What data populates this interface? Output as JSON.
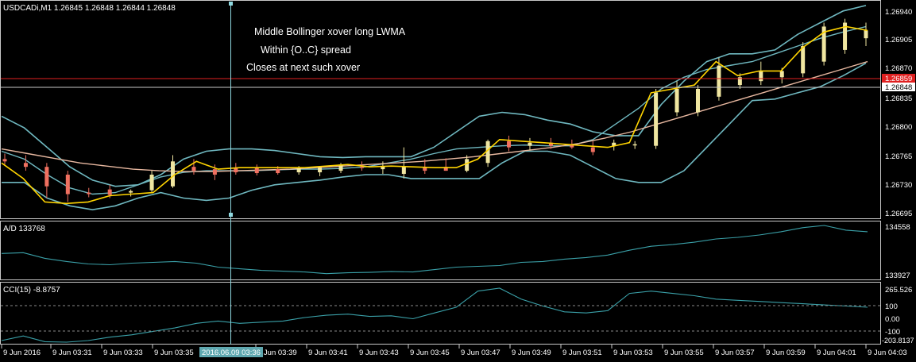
{
  "main_panel": {
    "title": "USDCADi,M1  1.26845 1.26848 1.26844 1.26848",
    "annotations": [
      "Middle Bollinger xover long LWMA",
      "Within {O..C} spread",
      "Closes at next such  xover"
    ],
    "price_labels": [
      "1.26940",
      "1.26905",
      "1.26870",
      "1.26835",
      "1.26800",
      "1.26765",
      "1.26730",
      "1.26695"
    ],
    "bid_price_label": "1.26859",
    "current_price_label": "1.26848"
  },
  "ad_panel": {
    "title": "A/D 133768",
    "scale_labels": [
      "134558",
      "133927"
    ]
  },
  "cci_panel": {
    "title": "CCI(15) -8.8757",
    "scale_labels": [
      "265.526",
      "100",
      "0.00",
      "-100",
      "-203.8137"
    ]
  },
  "time_axis": {
    "labels": [
      "9 Jun 2016",
      "9 Jun 03:31",
      "9 Jun 03:33",
      "9 Jun 03:35",
      "9 Jun 03:39",
      "9 Jun 03:41",
      "9 Jun 03:43",
      "9 Jun 03:45",
      "9 Jun 03:47",
      "9 Jun 03:49",
      "9 Jun 03:51",
      "9 Jun 03:53",
      "9 Jun 03:55",
      "9 Jun 03:57",
      "9 Jun 03:59",
      "9 Jun 04:01",
      "9 Jun 04:03"
    ],
    "crosshair_time": "2016.06.09 03:36"
  },
  "colors": {
    "background": "#000000",
    "bull_candle": "#f0e6a0",
    "bear_candle": "#f07060",
    "bollinger": "#6fb8c0",
    "lwma": "#e8b8a0",
    "fast_line": "#ffd400",
    "bid_line": "#e02020",
    "indicator_line": "#3aa0a8",
    "crosshair": "#8fd8e0"
  },
  "chart_data": {
    "type": "candlestick",
    "symbol": "USDCADi",
    "timeframe": "M1",
    "ylim": [
      1.2668,
      1.26955
    ],
    "candles": [
      {
        "o": 1.26755,
        "h": 1.26762,
        "l": 1.26748,
        "c": 1.26752
      },
      {
        "o": 1.2675,
        "h": 1.2676,
        "l": 1.2674,
        "c": 1.26745
      },
      {
        "o": 1.26745,
        "h": 1.2675,
        "l": 1.26705,
        "c": 1.2672
      },
      {
        "o": 1.26735,
        "h": 1.2674,
        "l": 1.267,
        "c": 1.2671
      },
      {
        "o": 1.26712,
        "h": 1.26718,
        "l": 1.26706,
        "c": 1.2671
      },
      {
        "o": 1.26716,
        "h": 1.26722,
        "l": 1.26705,
        "c": 1.26709
      },
      {
        "o": 1.26712,
        "h": 1.26716,
        "l": 1.26707,
        "c": 1.26714
      },
      {
        "o": 1.26715,
        "h": 1.2674,
        "l": 1.26712,
        "c": 1.26735
      },
      {
        "o": 1.2672,
        "h": 1.2676,
        "l": 1.26718,
        "c": 1.26752
      },
      {
        "o": 1.26745,
        "h": 1.26755,
        "l": 1.26735,
        "c": 1.2674
      },
      {
        "o": 1.26742,
        "h": 1.26748,
        "l": 1.26728,
        "c": 1.26735
      },
      {
        "o": 1.26744,
        "h": 1.2675,
        "l": 1.26735,
        "c": 1.26738
      },
      {
        "o": 1.26744,
        "h": 1.26748,
        "l": 1.26734,
        "c": 1.26737
      },
      {
        "o": 1.26742,
        "h": 1.26746,
        "l": 1.26735,
        "c": 1.26737
      },
      {
        "o": 1.26738,
        "h": 1.26746,
        "l": 1.26735,
        "c": 1.26744
      },
      {
        "o": 1.26738,
        "h": 1.26746,
        "l": 1.26733,
        "c": 1.26744
      },
      {
        "o": 1.2674,
        "h": 1.2675,
        "l": 1.26737,
        "c": 1.26748
      },
      {
        "o": 1.26745,
        "h": 1.26752,
        "l": 1.2674,
        "c": 1.26744
      },
      {
        "o": 1.26742,
        "h": 1.26752,
        "l": 1.26736,
        "c": 1.26746
      },
      {
        "o": 1.26736,
        "h": 1.2677,
        "l": 1.2673,
        "c": 1.26745
      },
      {
        "o": 1.26745,
        "h": 1.26755,
        "l": 1.26736,
        "c": 1.2674
      },
      {
        "o": 1.26745,
        "h": 1.26756,
        "l": 1.2674,
        "c": 1.2674
      },
      {
        "o": 1.2674,
        "h": 1.2676,
        "l": 1.26738,
        "c": 1.26755
      },
      {
        "o": 1.2675,
        "h": 1.2678,
        "l": 1.26745,
        "c": 1.26778
      },
      {
        "o": 1.26778,
        "h": 1.26785,
        "l": 1.26765,
        "c": 1.2677
      },
      {
        "o": 1.26772,
        "h": 1.26782,
        "l": 1.26766,
        "c": 1.26776
      },
      {
        "o": 1.26776,
        "h": 1.26782,
        "l": 1.26768,
        "c": 1.26772
      },
      {
        "o": 1.26774,
        "h": 1.2678,
        "l": 1.26768,
        "c": 1.2677
      },
      {
        "o": 1.2677,
        "h": 1.26778,
        "l": 1.2676,
        "c": 1.26764
      },
      {
        "o": 1.26772,
        "h": 1.2678,
        "l": 1.26766,
        "c": 1.26776
      },
      {
        "o": 1.26774,
        "h": 1.26778,
        "l": 1.26768,
        "c": 1.26774
      },
      {
        "o": 1.26772,
        "h": 1.26845,
        "l": 1.26768,
        "c": 1.2684
      },
      {
        "o": 1.26815,
        "h": 1.26855,
        "l": 1.2681,
        "c": 1.26845
      },
      {
        "o": 1.26815,
        "h": 1.2685,
        "l": 1.2681,
        "c": 1.26845
      },
      {
        "o": 1.26835,
        "h": 1.26885,
        "l": 1.2683,
        "c": 1.26875
      },
      {
        "o": 1.2685,
        "h": 1.26865,
        "l": 1.26845,
        "c": 1.2686
      },
      {
        "o": 1.26855,
        "h": 1.2688,
        "l": 1.2685,
        "c": 1.26868
      },
      {
        "o": 1.2686,
        "h": 1.26872,
        "l": 1.26852,
        "c": 1.26868
      },
      {
        "o": 1.26865,
        "h": 1.26905,
        "l": 1.2686,
        "c": 1.269
      },
      {
        "o": 1.2688,
        "h": 1.2693,
        "l": 1.26875,
        "c": 1.26925
      },
      {
        "o": 1.26895,
        "h": 1.26935,
        "l": 1.2689,
        "c": 1.2693
      },
      {
        "o": 1.2691,
        "h": 1.2693,
        "l": 1.269,
        "c": 1.2692
      }
    ],
    "bollinger_upper": [
      1.2681,
      1.26795,
      1.2677,
      1.26745,
      1.26728,
      1.2672,
      1.26722,
      1.26735,
      1.26755,
      1.26765,
      1.26768,
      1.26768,
      1.26766,
      1.26762,
      1.26758,
      1.26757,
      1.26758,
      1.26758,
      1.26758,
      1.2677,
      1.2679,
      1.2681,
      1.26815,
      1.26812,
      1.26805,
      1.268,
      1.2679,
      1.26785,
      1.26785,
      1.26825,
      1.26855,
      1.2688,
      1.2689,
      1.2689,
      1.26895,
      1.26915,
      1.2693,
      1.26945,
      1.26952
    ],
    "bollinger_middle": [
      1.26765,
      1.26755,
      1.26735,
      1.26718,
      1.2671,
      1.26712,
      1.26722,
      1.26732,
      1.26738,
      1.2674,
      1.2674,
      1.2674,
      1.26741,
      1.26742,
      1.26742,
      1.26743,
      1.26745,
      1.2675,
      1.26755,
      1.26762,
      1.26768,
      1.2677,
      1.26772,
      1.26773,
      1.26772,
      1.26772,
      1.2678,
      1.268,
      1.2682,
      1.26845,
      1.2686,
      1.2687,
      1.26875,
      1.2688,
      1.2689,
      1.269,
      1.2691,
      1.26918,
      1.26925
    ],
    "bollinger_lower": [
      1.26725,
      1.26725,
      1.26705,
      1.26695,
      1.2669,
      1.26695,
      1.26705,
      1.26712,
      1.26705,
      1.26702,
      1.26705,
      1.26715,
      1.26722,
      1.26725,
      1.26728,
      1.26732,
      1.26735,
      1.26735,
      1.2673,
      1.2673,
      1.2673,
      1.2673,
      1.2675,
      1.26765,
      1.26765,
      1.2676,
      1.26745,
      1.2673,
      1.26725,
      1.26725,
      1.2674,
      1.2677,
      1.268,
      1.2683,
      1.26832,
      1.2684,
      1.26848,
      1.26862,
      1.26878
    ],
    "lwma": [
      1.26768,
      1.26762,
      1.26756,
      1.2675,
      1.26746,
      1.26742,
      1.2674,
      1.26739,
      1.26739,
      1.2674,
      1.26741,
      1.26742,
      1.26744,
      1.26746,
      1.26748,
      1.2675,
      1.26752,
      1.26755,
      1.26758,
      1.26762,
      1.26766,
      1.2677,
      1.26775,
      1.26782,
      1.2679,
      1.268,
      1.2681,
      1.2682,
      1.2683,
      1.2684,
      1.2685,
      1.2686,
      1.2687,
      1.2688
    ],
    "fast_line": [
      1.2675,
      1.2673,
      1.267,
      1.26698,
      1.267,
      1.26708,
      1.2671,
      1.26712,
      1.26735,
      1.26752,
      1.26742,
      1.26744,
      1.26744,
      1.26744,
      1.26744,
      1.26746,
      1.26748,
      1.26745,
      1.26746,
      1.26745,
      1.26744,
      1.26744,
      1.26755,
      1.2678,
      1.26778,
      1.26776,
      1.26774,
      1.26772,
      1.2677,
      1.26776,
      1.2684,
      1.26845,
      1.2685,
      1.2688,
      1.26862,
      1.26868,
      1.26868,
      1.26898,
      1.26918,
      1.26925,
      1.2692
    ],
    "ad": [
      134210,
      134220,
      134150,
      134110,
      134080,
      134070,
      134090,
      134100,
      134110,
      134090,
      134040,
      134020,
      134000,
      133990,
      133980,
      133960,
      133970,
      133975,
      133985,
      133980,
      134010,
      134040,
      134050,
      134060,
      134100,
      134110,
      134140,
      134160,
      134190,
      134250,
      134300,
      134320,
      134350,
      134390,
      134410,
      134440,
      134480,
      134530,
      134558,
      134500,
      134480
    ],
    "cci": [
      -190,
      -150,
      -200,
      -220,
      -190,
      -160,
      -140,
      -110,
      -80,
      -40,
      -20,
      -40,
      -30,
      -20,
      10,
      30,
      40,
      20,
      25,
      0,
      50,
      100,
      240,
      270,
      170,
      110,
      60,
      50,
      70,
      220,
      240,
      220,
      200,
      170,
      160,
      150,
      140,
      130,
      120,
      110,
      100
    ]
  }
}
